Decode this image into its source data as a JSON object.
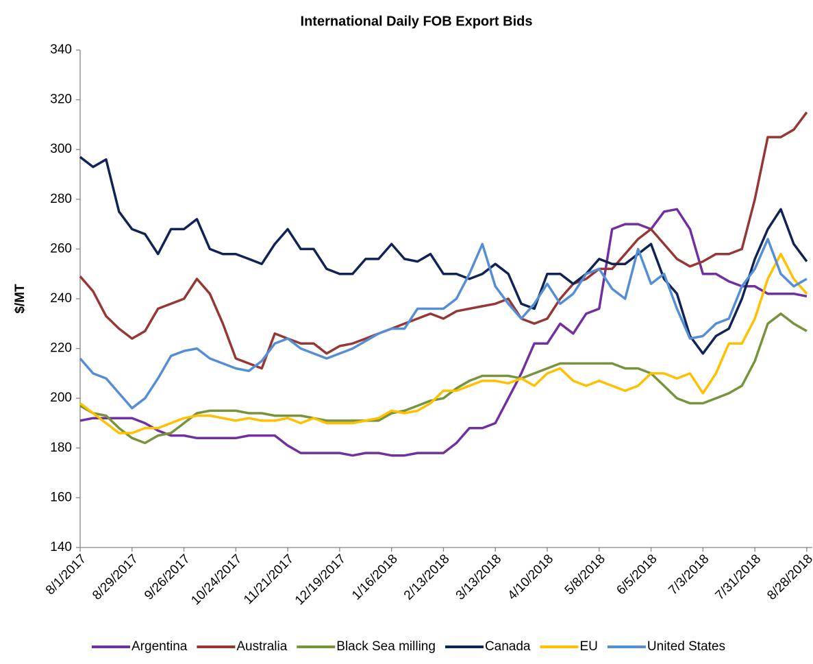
{
  "chart_data": {
    "type": "line",
    "title": "International Daily FOB Export Bids",
    "y_label": "$/MT",
    "x": [
      "8/1/2017",
      "8/8/2017",
      "8/15/2017",
      "8/22/2017",
      "8/29/2017",
      "9/5/2017",
      "9/12/2017",
      "9/19/2017",
      "9/26/2017",
      "10/3/2017",
      "10/10/2017",
      "10/17/2017",
      "10/24/2017",
      "10/31/2017",
      "11/7/2017",
      "11/14/2017",
      "11/21/2017",
      "11/28/2017",
      "12/5/2017",
      "12/12/2017",
      "12/19/2017",
      "12/26/2017",
      "1/2/2018",
      "1/9/2018",
      "1/16/2018",
      "1/23/2018",
      "1/30/2018",
      "2/6/2018",
      "2/13/2018",
      "2/20/2018",
      "2/27/2018",
      "3/6/2018",
      "3/13/2018",
      "3/20/2018",
      "3/27/2018",
      "4/3/2018",
      "4/10/2018",
      "4/17/2018",
      "4/24/2018",
      "5/1/2018",
      "5/8/2018",
      "5/15/2018",
      "5/22/2018",
      "5/29/2018",
      "6/5/2018",
      "6/12/2018",
      "6/19/2018",
      "6/26/2018",
      "7/3/2018",
      "7/10/2018",
      "7/17/2018",
      "7/24/2018",
      "7/31/2018",
      "8/7/2018",
      "8/14/2018",
      "8/21/2018",
      "8/28/2018"
    ],
    "xlim": [
      "8/1/2017",
      "8/31/2018"
    ],
    "xticks": [
      "8/1/2017",
      "8/29/2017",
      "9/26/2017",
      "10/24/2017",
      "11/21/2017",
      "12/19/2017",
      "1/16/2018",
      "2/13/2018",
      "3/13/2018",
      "4/10/2018",
      "5/8/2018",
      "6/5/2018",
      "7/3/2018",
      "7/31/2018",
      "8/28/2018"
    ],
    "ylim": [
      140,
      340
    ],
    "yticks": [
      140,
      160,
      180,
      200,
      220,
      240,
      260,
      280,
      300,
      320,
      340
    ],
    "grid": false,
    "legend": "bottom",
    "series": [
      {
        "name": "Argentina",
        "color": "#7030a0",
        "values": [
          191,
          192,
          192,
          192,
          192,
          190,
          187,
          185,
          185,
          184,
          184,
          184,
          184,
          185,
          185,
          185,
          181,
          178,
          178,
          178,
          178,
          177,
          178,
          178,
          177,
          177,
          178,
          178,
          178,
          182,
          188,
          188,
          190,
          200,
          210,
          222,
          222,
          230,
          226,
          234,
          236,
          268,
          270,
          270,
          268,
          275,
          276,
          268,
          250,
          250,
          247,
          245,
          245,
          242,
          242,
          242,
          241
        ]
      },
      {
        "name": "Australia",
        "color": "#953735",
        "values": [
          249,
          243,
          233,
          228,
          224,
          227,
          236,
          238,
          240,
          248,
          242,
          230,
          216,
          214,
          212,
          226,
          224,
          222,
          222,
          218,
          221,
          222,
          224,
          226,
          228,
          230,
          232,
          234,
          232,
          235,
          236,
          237,
          238,
          240,
          232,
          230,
          232,
          240,
          246,
          248,
          252,
          252,
          258,
          264,
          268,
          262,
          256,
          253,
          255,
          258,
          258,
          260,
          280,
          305,
          305,
          308,
          315
        ]
      },
      {
        "name": "Black Sea milling",
        "color": "#77933c",
        "values": [
          197,
          194,
          193,
          188,
          184,
          182,
          185,
          186,
          190,
          194,
          195,
          195,
          195,
          194,
          194,
          193,
          193,
          193,
          192,
          191,
          191,
          191,
          191,
          191,
          194,
          195,
          197,
          199,
          200,
          204,
          207,
          209,
          209,
          209,
          208,
          210,
          212,
          214,
          214,
          214,
          214,
          214,
          212,
          212,
          210,
          205,
          200,
          198,
          198,
          200,
          202,
          205,
          215,
          230,
          234,
          230,
          227
        ]
      },
      {
        "name": "Canada",
        "color": "#0f2454",
        "values": [
          297,
          293,
          296,
          275,
          268,
          266,
          258,
          268,
          268,
          272,
          260,
          258,
          258,
          256,
          254,
          262,
          268,
          260,
          260,
          252,
          250,
          250,
          256,
          256,
          262,
          256,
          255,
          258,
          250,
          250,
          248,
          250,
          254,
          250,
          238,
          236,
          250,
          250,
          246,
          250,
          256,
          254,
          254,
          258,
          262,
          248,
          242,
          225,
          218,
          225,
          228,
          240,
          256,
          268,
          276,
          262,
          255
        ]
      },
      {
        "name": "EU",
        "color": "#ffc000",
        "values": [
          198,
          194,
          190,
          186,
          186,
          188,
          188,
          190,
          192,
          193,
          193,
          192,
          191,
          192,
          191,
          191,
          192,
          190,
          192,
          190,
          190,
          190,
          191,
          192,
          195,
          194,
          195,
          198,
          203,
          203,
          205,
          207,
          207,
          206,
          208,
          205,
          210,
          212,
          207,
          205,
          207,
          205,
          203,
          205,
          210,
          210,
          208,
          210,
          202,
          210,
          222,
          222,
          232,
          248,
          258,
          248,
          242
        ]
      },
      {
        "name": "United States",
        "color": "#558ed5",
        "values": [
          216,
          210,
          208,
          202,
          196,
          200,
          208,
          217,
          219,
          220,
          216,
          214,
          212,
          211,
          215,
          222,
          224,
          220,
          218,
          216,
          218,
          220,
          223,
          226,
          228,
          228,
          236,
          236,
          236,
          240,
          250,
          262,
          245,
          238,
          232,
          238,
          246,
          238,
          242,
          250,
          252,
          244,
          240,
          260,
          246,
          250,
          236,
          224,
          225,
          230,
          232,
          245,
          252,
          264,
          250,
          245,
          248
        ]
      }
    ]
  }
}
